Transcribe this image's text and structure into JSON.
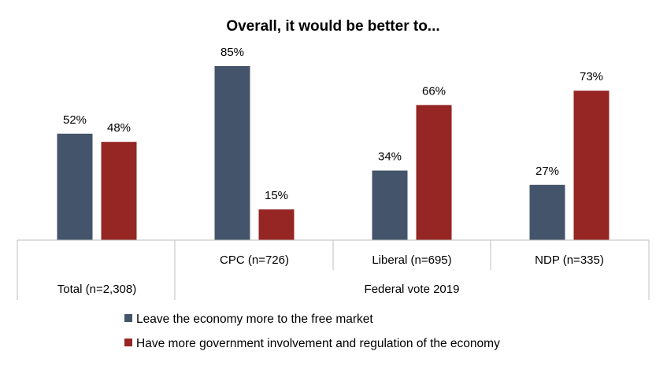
{
  "chart_data": {
    "type": "bar",
    "title": "Overall, it would be better to...",
    "categories": [
      "Total (n=2,308)",
      "CPC (n=726)",
      "Liberal (n=695)",
      "NDP (n=335)"
    ],
    "group_label": "Federal vote 2019",
    "series": [
      {
        "name": "Leave the economy more to the free market",
        "values": [
          52,
          85,
          34,
          27
        ],
        "color": "#44546a"
      },
      {
        "name": "Have more government involvement and regulation of the economy",
        "values": [
          48,
          15,
          66,
          73
        ],
        "color": "#952623"
      }
    ],
    "value_suffix": "%",
    "ylim": [
      0,
      100
    ],
    "legend_position": "bottom",
    "grid": false
  }
}
